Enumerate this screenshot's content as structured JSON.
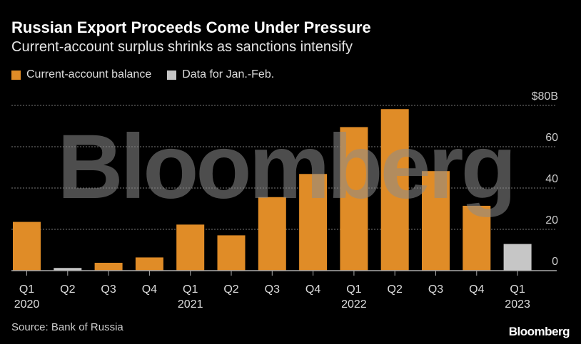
{
  "title": "Russian Export Proceeds Come Under Pressure",
  "subtitle": "Current-account surplus shrinks as sanctions intensify",
  "source": "Source: Bank of Russia",
  "logo": "Bloomberg",
  "watermark": "Bloomberg",
  "colors": {
    "primary": "#e08c27",
    "partial": "#c6c6c6"
  },
  "chart_data": {
    "type": "bar",
    "title": "Russian Export Proceeds Come Under Pressure",
    "legend": [
      {
        "label": "Current-account balance",
        "color": "#e08c27"
      },
      {
        "label": "Data for Jan.-Feb.",
        "color": "#c6c6c6"
      }
    ],
    "legend_placement": "top-left",
    "categories": [
      "Q1",
      "Q2",
      "Q3",
      "Q4",
      "Q1",
      "Q2",
      "Q3",
      "Q4",
      "Q1",
      "Q2",
      "Q3",
      "Q4",
      "Q1"
    ],
    "year_labels": [
      "2020",
      "",
      "",
      "",
      "2021",
      "",
      "",
      "",
      "2022",
      "",
      "",
      "",
      "2023"
    ],
    "values": [
      23.6,
      1.3,
      3.8,
      6.4,
      22.3,
      17.1,
      35.6,
      46.8,
      69.5,
      78.2,
      48.2,
      31.4,
      12.9
    ],
    "partial": [
      false,
      true,
      false,
      false,
      false,
      false,
      false,
      false,
      false,
      false,
      false,
      false,
      true
    ],
    "yticks": [
      0,
      20,
      40,
      60,
      80
    ],
    "ytick_labels": [
      "0",
      "20",
      "40",
      "60",
      "$80B"
    ],
    "ylim": [
      0,
      80
    ],
    "grid": true,
    "yaxis_side": "right"
  }
}
